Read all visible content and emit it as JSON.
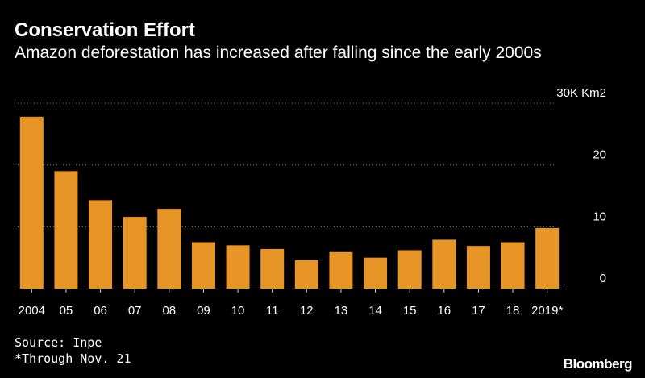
{
  "title": "Conservation Effort",
  "subtitle": "Amazon deforestation has increased after falling since the early 2000s",
  "source": "Source: Inpe",
  "footnote": "*Through Nov. 21",
  "brand": "Bloomberg",
  "colors": {
    "bar": "#E69526",
    "grid": "#8a8a8a",
    "text": "#ffffff",
    "background": "#000000"
  },
  "chart_data": {
    "type": "bar",
    "categories": [
      "2004",
      "05",
      "06",
      "07",
      "08",
      "09",
      "10",
      "11",
      "12",
      "13",
      "14",
      "15",
      "16",
      "17",
      "18",
      "2019*"
    ],
    "values": [
      27.8,
      19.0,
      14.3,
      11.6,
      12.9,
      7.5,
      7.0,
      6.4,
      4.6,
      5.9,
      5.0,
      6.2,
      7.9,
      6.9,
      7.5,
      9.8
    ],
    "ylim": [
      0,
      30
    ],
    "y_ticks": [
      0,
      10,
      20,
      30
    ],
    "y_tick_labels": [
      "0",
      "10",
      "20",
      "30K Km2"
    ],
    "grid": true,
    "grid_style": "dotted",
    "y_axis_side": "right"
  }
}
